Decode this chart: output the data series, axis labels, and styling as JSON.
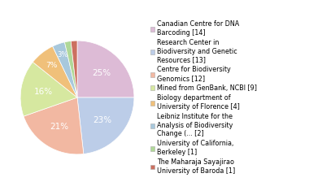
{
  "legend_labels": [
    "Canadian Centre for DNA\nBarcoding [14]",
    "Research Center in\nBiodiversity and Genetic\nResources [13]",
    "Centre for Biodiversity\nGenomics [12]",
    "Mined from GenBank, NCBI [9]",
    "Biology department of\nUniversity of Florence [4]",
    "Leibniz Institute for the\nAnalysis of Biodiversity\nChange (... [2]",
    "University of California,\nBerkeley [1]",
    "The Maharaja Sayajirao\nUniversity of Baroda [1]"
  ],
  "values": [
    14,
    13,
    12,
    9,
    4,
    2,
    1,
    1
  ],
  "colors": [
    "#ddbbd6",
    "#bccde8",
    "#f2b8a2",
    "#d6e8a0",
    "#f0c07a",
    "#a8c8dc",
    "#b0d898",
    "#cc7060"
  ],
  "startangle": 90,
  "figsize": [
    3.8,
    2.4
  ],
  "dpi": 100,
  "legend_fontsize": 5.8,
  "pct_fontsize": 7.5,
  "background_color": "#ffffff"
}
